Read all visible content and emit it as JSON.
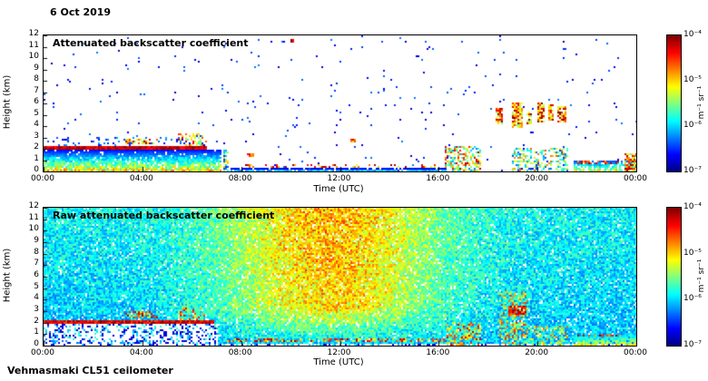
{
  "date_label": "6 Oct 2019",
  "footer": "Vehmasmaki CL51 ceilometer",
  "axis": {
    "xlabel": "Time (UTC)",
    "ylabel": "Height (km)",
    "xticks": [
      "00:00",
      "04:00",
      "08:00",
      "12:00",
      "16:00",
      "20:00",
      "00:00"
    ],
    "yticks": [
      "0",
      "1",
      "2",
      "3",
      "4",
      "5",
      "6",
      "7",
      "8",
      "9",
      "10",
      "11",
      "12"
    ],
    "x_range_hours": [
      0,
      24
    ],
    "y_range_km": [
      0,
      12
    ]
  },
  "colorbar": {
    "ticks": [
      "10⁻⁴",
      "10⁻⁵",
      "10⁻⁶",
      "10⁻⁷"
    ],
    "unit": "m⁻¹ sr⁻¹",
    "scale": "log",
    "value_range": [
      1e-07,
      0.0001
    ],
    "colormap": "jet"
  },
  "chart_data": [
    {
      "type": "heatmap",
      "title": "Attenuated backscatter coefficient",
      "xlabel": "Time (UTC)",
      "ylabel": "Height (km)",
      "x_range_hours": [
        0,
        24
      ],
      "y_range_km": [
        0,
        12
      ],
      "value_unit": "m⁻¹ sr⁻¹",
      "value_range": [
        1e-07,
        0.0001
      ],
      "background": "white",
      "noise": null,
      "features": [
        {
          "t": [
            0,
            24
          ],
          "h": [
            0,
            12
          ],
          "density": 0.012,
          "v": [
            0.08,
            0.25
          ]
        },
        {
          "t": [
            0,
            7.2
          ],
          "h": [
            0,
            2.0
          ],
          "density": 0.92,
          "v": [
            0.12,
            0.85
          ],
          "fade": "up"
        },
        {
          "t": [
            0,
            6.6
          ],
          "h": [
            2.0,
            2.35
          ],
          "density": 1,
          "v": [
            0.85,
            1.0
          ]
        },
        {
          "t": [
            0,
            6.6
          ],
          "h": [
            2.35,
            3.2
          ],
          "density": 0.12,
          "v": [
            0.08,
            0.3
          ]
        },
        {
          "t": [
            3.3,
            4.6
          ],
          "h": [
            2.4,
            3.0
          ],
          "density": 0.5,
          "v": [
            0.5,
            1.0
          ]
        },
        {
          "t": [
            5.4,
            6.6
          ],
          "h": [
            2.3,
            3.4
          ],
          "density": 0.4,
          "v": [
            0.4,
            0.95
          ]
        },
        {
          "t": [
            7.25,
            7.45
          ],
          "h": [
            0,
            2.0
          ],
          "density": 0.7,
          "v": [
            0.15,
            0.7
          ]
        },
        {
          "t": [
            7.5,
            16.3
          ],
          "h": [
            0,
            0.35
          ],
          "density": 0.85,
          "v": [
            0.1,
            0.6
          ],
          "fade": "up"
        },
        {
          "t": [
            8.0,
            16.3
          ],
          "h": [
            0.45,
            0.75
          ],
          "density": 0.22,
          "v": [
            0.55,
            1.0
          ]
        },
        {
          "t": [
            8.2,
            8.5
          ],
          "h": [
            1.4,
            1.7
          ],
          "density": 0.9,
          "v": [
            0.7,
            1.0
          ]
        },
        {
          "t": [
            12.4,
            12.6
          ],
          "h": [
            2.7,
            3.0
          ],
          "density": 0.9,
          "v": [
            0.6,
            1.0
          ]
        },
        {
          "t": [
            9.95,
            10.1
          ],
          "h": [
            11.5,
            11.75
          ],
          "density": 1,
          "v": [
            0.85,
            1.0
          ]
        },
        {
          "t": [
            16.2,
            17.7
          ],
          "h": [
            0,
            2.3
          ],
          "density": 0.55,
          "v": [
            0.25,
            0.95
          ]
        },
        {
          "t": [
            18.25,
            18.55
          ],
          "h": [
            4.3,
            5.7
          ],
          "density": 0.85,
          "v": [
            0.5,
            1.0
          ]
        },
        {
          "t": [
            18.95,
            19.35
          ],
          "h": [
            3.9,
            6.1
          ],
          "density": 0.85,
          "v": [
            0.5,
            1.0
          ]
        },
        {
          "t": [
            19.55,
            19.75
          ],
          "h": [
            4.3,
            5.3
          ],
          "density": 0.8,
          "v": [
            0.5,
            1.0
          ]
        },
        {
          "t": [
            19.95,
            20.25
          ],
          "h": [
            4.4,
            6.2
          ],
          "density": 0.85,
          "v": [
            0.5,
            1.0
          ]
        },
        {
          "t": [
            20.4,
            20.65
          ],
          "h": [
            4.5,
            6.0
          ],
          "density": 0.85,
          "v": [
            0.5,
            1.0
          ]
        },
        {
          "t": [
            20.75,
            21.1
          ],
          "h": [
            4.4,
            5.9
          ],
          "density": 0.85,
          "v": [
            0.5,
            1.0
          ]
        },
        {
          "t": [
            18.9,
            21.2
          ],
          "h": [
            0,
            2.2
          ],
          "density": 0.45,
          "v": [
            0.15,
            0.8
          ]
        },
        {
          "t": [
            21.4,
            24
          ],
          "h": [
            0,
            1.1
          ],
          "density": 0.75,
          "v": [
            0.15,
            0.8
          ],
          "fade": "up"
        },
        {
          "t": [
            21.6,
            23.3
          ],
          "h": [
            0.75,
            1.05
          ],
          "density": 0.5,
          "v": [
            0.7,
            1.0
          ]
        },
        {
          "t": [
            23.5,
            24
          ],
          "h": [
            0,
            1.7
          ],
          "density": 0.85,
          "v": [
            0.4,
            1.0
          ]
        },
        {
          "t": [
            0,
            24
          ],
          "h": [
            0,
            0.12
          ],
          "density": 0.9,
          "v": [
            0.35,
            0.9
          ]
        }
      ]
    },
    {
      "type": "heatmap",
      "title": "Raw attenuated backscatter coefficient",
      "xlabel": "Time (UTC)",
      "ylabel": "Height (km)",
      "x_range_hours": [
        0,
        24
      ],
      "y_range_km": [
        0,
        12
      ],
      "value_unit": "m⁻¹ sr⁻¹",
      "value_range": [
        1e-07,
        0.0001
      ],
      "background": "noise",
      "noise": {
        "base": 0.2,
        "rand": 0.22,
        "white_frac": 0.06,
        "day_center": 11.6,
        "day_sigma": 4.4,
        "day_amp": 0.25,
        "day_rand": 0.15,
        "day_hmin": 3.5,
        "height_gain": 0.06
      },
      "features": [
        {
          "t": [
            0,
            7.0
          ],
          "h": [
            0,
            1.9
          ],
          "density": 0.8,
          "v": [
            0.0,
            0.1
          ],
          "mode": "set"
        },
        {
          "t": [
            7.0,
            24
          ],
          "h": [
            0,
            0.25
          ],
          "density": 0.75,
          "v": [
            0.0,
            0.1
          ],
          "mode": "set"
        },
        {
          "t": [
            0,
            6.9
          ],
          "h": [
            1.95,
            2.35
          ],
          "density": 1,
          "v": [
            0.8,
            1.0
          ]
        },
        {
          "t": [
            3.3,
            4.6
          ],
          "h": [
            2.4,
            3.0
          ],
          "density": 0.45,
          "v": [
            0.5,
            1.0
          ]
        },
        {
          "t": [
            5.4,
            6.6
          ],
          "h": [
            2.3,
            3.4
          ],
          "density": 0.35,
          "v": [
            0.4,
            0.9
          ]
        },
        {
          "t": [
            7.4,
            16.2
          ],
          "h": [
            0.35,
            0.7
          ],
          "density": 0.45,
          "v": [
            0.6,
            1.0
          ]
        },
        {
          "t": [
            0,
            7.0
          ],
          "h": [
            0,
            0.12
          ],
          "density": 0.9,
          "v": [
            0.5,
            1.0
          ]
        },
        {
          "t": [
            16.3,
            17.7
          ],
          "h": [
            0,
            2.2
          ],
          "density": 0.6,
          "v": [
            0.3,
            0.95
          ]
        },
        {
          "t": [
            18.4,
            19.6
          ],
          "h": [
            0,
            4.8
          ],
          "density": 0.5,
          "v": [
            0.3,
            0.85
          ]
        },
        {
          "t": [
            18.8,
            19.5
          ],
          "h": [
            2.7,
            3.5
          ],
          "density": 0.85,
          "v": [
            0.75,
            1.0
          ]
        },
        {
          "t": [
            19.6,
            21.2
          ],
          "h": [
            0,
            1.8
          ],
          "density": 0.5,
          "v": [
            0.25,
            0.8
          ]
        },
        {
          "t": [
            21.4,
            24
          ],
          "h": [
            0,
            1.15
          ],
          "density": 0.7,
          "v": [
            0.2,
            0.85
          ],
          "fade": "up"
        },
        {
          "t": [
            21.6,
            23.4
          ],
          "h": [
            0.8,
            1.1
          ],
          "density": 0.5,
          "v": [
            0.7,
            1.0
          ]
        }
      ]
    }
  ]
}
